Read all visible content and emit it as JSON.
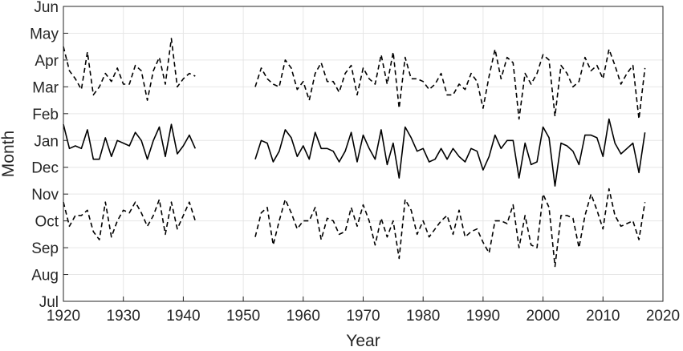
{
  "chart_data": {
    "type": "line",
    "xlabel": "Year",
    "ylabel": "Month",
    "xlim": [
      1920,
      2020
    ],
    "ylim": [
      0,
      11
    ],
    "x_ticks": [
      1920,
      1930,
      1940,
      1950,
      1960,
      1970,
      1980,
      1990,
      2000,
      2010,
      2020
    ],
    "y_ticks": [
      0,
      1,
      2,
      3,
      4,
      5,
      6,
      7,
      8,
      9,
      10,
      11
    ],
    "y_tick_labels": [
      "Jul",
      "Aug",
      "Sep",
      "Oct",
      "Nov",
      "Dec",
      "Jan",
      "Feb",
      "Mar",
      "Apr",
      "May",
      "Jun"
    ],
    "grid": true,
    "series": [
      {
        "style": "dashed",
        "x": [
          1920,
          1921,
          1922,
          1923,
          1924,
          1925,
          1926,
          1927,
          1928,
          1929,
          1930,
          1931,
          1932,
          1933,
          1934,
          1935,
          1936,
          1937,
          1938,
          1939,
          1940,
          1941,
          1942,
          1952,
          1953,
          1954,
          1955,
          1956,
          1957,
          1958,
          1959,
          1960,
          1961,
          1962,
          1963,
          1964,
          1965,
          1966,
          1967,
          1968,
          1969,
          1970,
          1971,
          1972,
          1973,
          1974,
          1975,
          1976,
          1977,
          1978,
          1979,
          1980,
          1981,
          1982,
          1983,
          1984,
          1985,
          1986,
          1987,
          1988,
          1989,
          1990,
          1991,
          1992,
          1993,
          1994,
          1995,
          1996,
          1997,
          1998,
          1999,
          2000,
          2001,
          2002,
          2003,
          2004,
          2005,
          2006,
          2007,
          2008,
          2009,
          2010,
          2011,
          2012,
          2013,
          2014,
          2015,
          2016,
          2017
        ],
        "y": [
          9.5,
          8.6,
          8.3,
          7.9,
          9.3,
          7.7,
          8.0,
          8.5,
          8.2,
          8.7,
          8.1,
          8.1,
          8.8,
          8.6,
          7.5,
          8.6,
          9.1,
          8.1,
          9.8,
          8.0,
          8.3,
          8.5,
          8.4,
          8.0,
          8.7,
          8.3,
          8.1,
          8.0,
          9.0,
          8.7,
          7.9,
          8.2,
          7.5,
          8.5,
          8.9,
          8.2,
          8.2,
          7.8,
          8.5,
          8.8,
          7.7,
          8.7,
          8.3,
          8.1,
          9.2,
          8.1,
          9.3,
          7.2,
          9.1,
          8.3,
          8.3,
          8.2,
          7.9,
          8.1,
          8.5,
          7.7,
          7.7,
          8.1,
          7.9,
          8.5,
          8.2,
          7.2,
          8.4,
          9.4,
          8.3,
          9.1,
          8.9,
          6.8,
          8.5,
          8.1,
          8.5,
          9.2,
          9.0,
          6.9,
          8.8,
          8.5,
          8.0,
          8.2,
          9.1,
          8.6,
          8.8,
          8.3,
          9.4,
          8.8,
          8.1,
          8.5,
          8.8,
          6.8,
          8.7
        ]
      },
      {
        "style": "solid",
        "x": [
          1920,
          1921,
          1922,
          1923,
          1924,
          1925,
          1926,
          1927,
          1928,
          1929,
          1930,
          1931,
          1932,
          1933,
          1934,
          1935,
          1936,
          1937,
          1938,
          1939,
          1940,
          1941,
          1942,
          1952,
          1953,
          1954,
          1955,
          1956,
          1957,
          1958,
          1959,
          1960,
          1961,
          1962,
          1963,
          1964,
          1965,
          1966,
          1967,
          1968,
          1969,
          1970,
          1971,
          1972,
          1973,
          1974,
          1975,
          1976,
          1977,
          1978,
          1979,
          1980,
          1981,
          1982,
          1983,
          1984,
          1985,
          1986,
          1987,
          1988,
          1989,
          1990,
          1991,
          1992,
          1993,
          1994,
          1995,
          1996,
          1997,
          1998,
          1999,
          2000,
          2001,
          2002,
          2003,
          2004,
          2005,
          2006,
          2007,
          2008,
          2009,
          2010,
          2011,
          2012,
          2013,
          2014,
          2015,
          2016,
          2017
        ],
        "y": [
          6.6,
          5.7,
          5.8,
          5.7,
          6.4,
          5.3,
          5.3,
          6.1,
          5.4,
          6.0,
          5.9,
          5.8,
          6.3,
          6.0,
          5.3,
          6.0,
          6.5,
          5.4,
          6.6,
          5.5,
          5.8,
          6.2,
          5.7,
          5.3,
          6.0,
          5.9,
          5.2,
          5.6,
          6.4,
          6.1,
          5.4,
          5.8,
          5.3,
          6.3,
          5.7,
          5.7,
          5.6,
          5.2,
          5.6,
          6.3,
          5.2,
          6.2,
          5.7,
          5.3,
          6.4,
          5.1,
          5.9,
          4.6,
          6.5,
          6.1,
          5.6,
          5.7,
          5.2,
          5.3,
          5.7,
          5.3,
          5.7,
          5.4,
          5.2,
          5.7,
          5.6,
          4.9,
          5.4,
          6.2,
          5.7,
          6.0,
          6.0,
          4.6,
          5.9,
          5.1,
          5.2,
          6.5,
          6.1,
          4.3,
          5.9,
          5.8,
          5.6,
          5.1,
          6.2,
          6.2,
          6.1,
          5.4,
          6.8,
          5.9,
          5.5,
          5.7,
          5.9,
          4.8,
          6.3
        ]
      },
      {
        "style": "dashed",
        "x": [
          1920,
          1921,
          1922,
          1923,
          1924,
          1925,
          1926,
          1927,
          1928,
          1929,
          1930,
          1931,
          1932,
          1933,
          1934,
          1935,
          1936,
          1937,
          1938,
          1939,
          1940,
          1941,
          1942,
          1952,
          1953,
          1954,
          1955,
          1956,
          1957,
          1958,
          1959,
          1960,
          1961,
          1962,
          1963,
          1964,
          1965,
          1966,
          1967,
          1968,
          1969,
          1970,
          1971,
          1972,
          1973,
          1974,
          1975,
          1976,
          1977,
          1978,
          1979,
          1980,
          1981,
          1982,
          1983,
          1984,
          1985,
          1986,
          1987,
          1988,
          1989,
          1990,
          1991,
          1992,
          1993,
          1994,
          1995,
          1996,
          1997,
          1998,
          1999,
          2000,
          2001,
          2002,
          2003,
          2004,
          2005,
          2006,
          2007,
          2008,
          2009,
          2010,
          2011,
          2012,
          2013,
          2014,
          2015,
          2016,
          2017
        ],
        "y": [
          3.7,
          2.8,
          3.2,
          3.2,
          3.4,
          2.6,
          2.3,
          3.7,
          2.4,
          3.0,
          3.4,
          3.3,
          3.7,
          3.3,
          2.8,
          3.2,
          3.8,
          2.5,
          3.7,
          2.7,
          3.2,
          3.7,
          3.0,
          2.4,
          3.3,
          3.5,
          2.1,
          3.0,
          3.8,
          3.3,
          2.7,
          3.0,
          3.0,
          3.5,
          2.3,
          3.1,
          3.0,
          2.5,
          2.6,
          3.5,
          2.8,
          3.6,
          3.0,
          2.1,
          3.1,
          2.4,
          3.0,
          1.6,
          3.8,
          3.4,
          2.5,
          3.0,
          2.4,
          2.7,
          3.0,
          3.2,
          2.5,
          3.4,
          2.4,
          2.6,
          2.7,
          2.2,
          1.8,
          3.0,
          3.0,
          2.9,
          3.6,
          2.0,
          3.2,
          2.1,
          2.0,
          4.0,
          3.5,
          1.3,
          3.2,
          3.2,
          3.1,
          2.0,
          3.2,
          4.0,
          3.4,
          2.7,
          4.2,
          3.2,
          2.8,
          2.9,
          3.0,
          2.3,
          3.7
        ]
      }
    ]
  }
}
